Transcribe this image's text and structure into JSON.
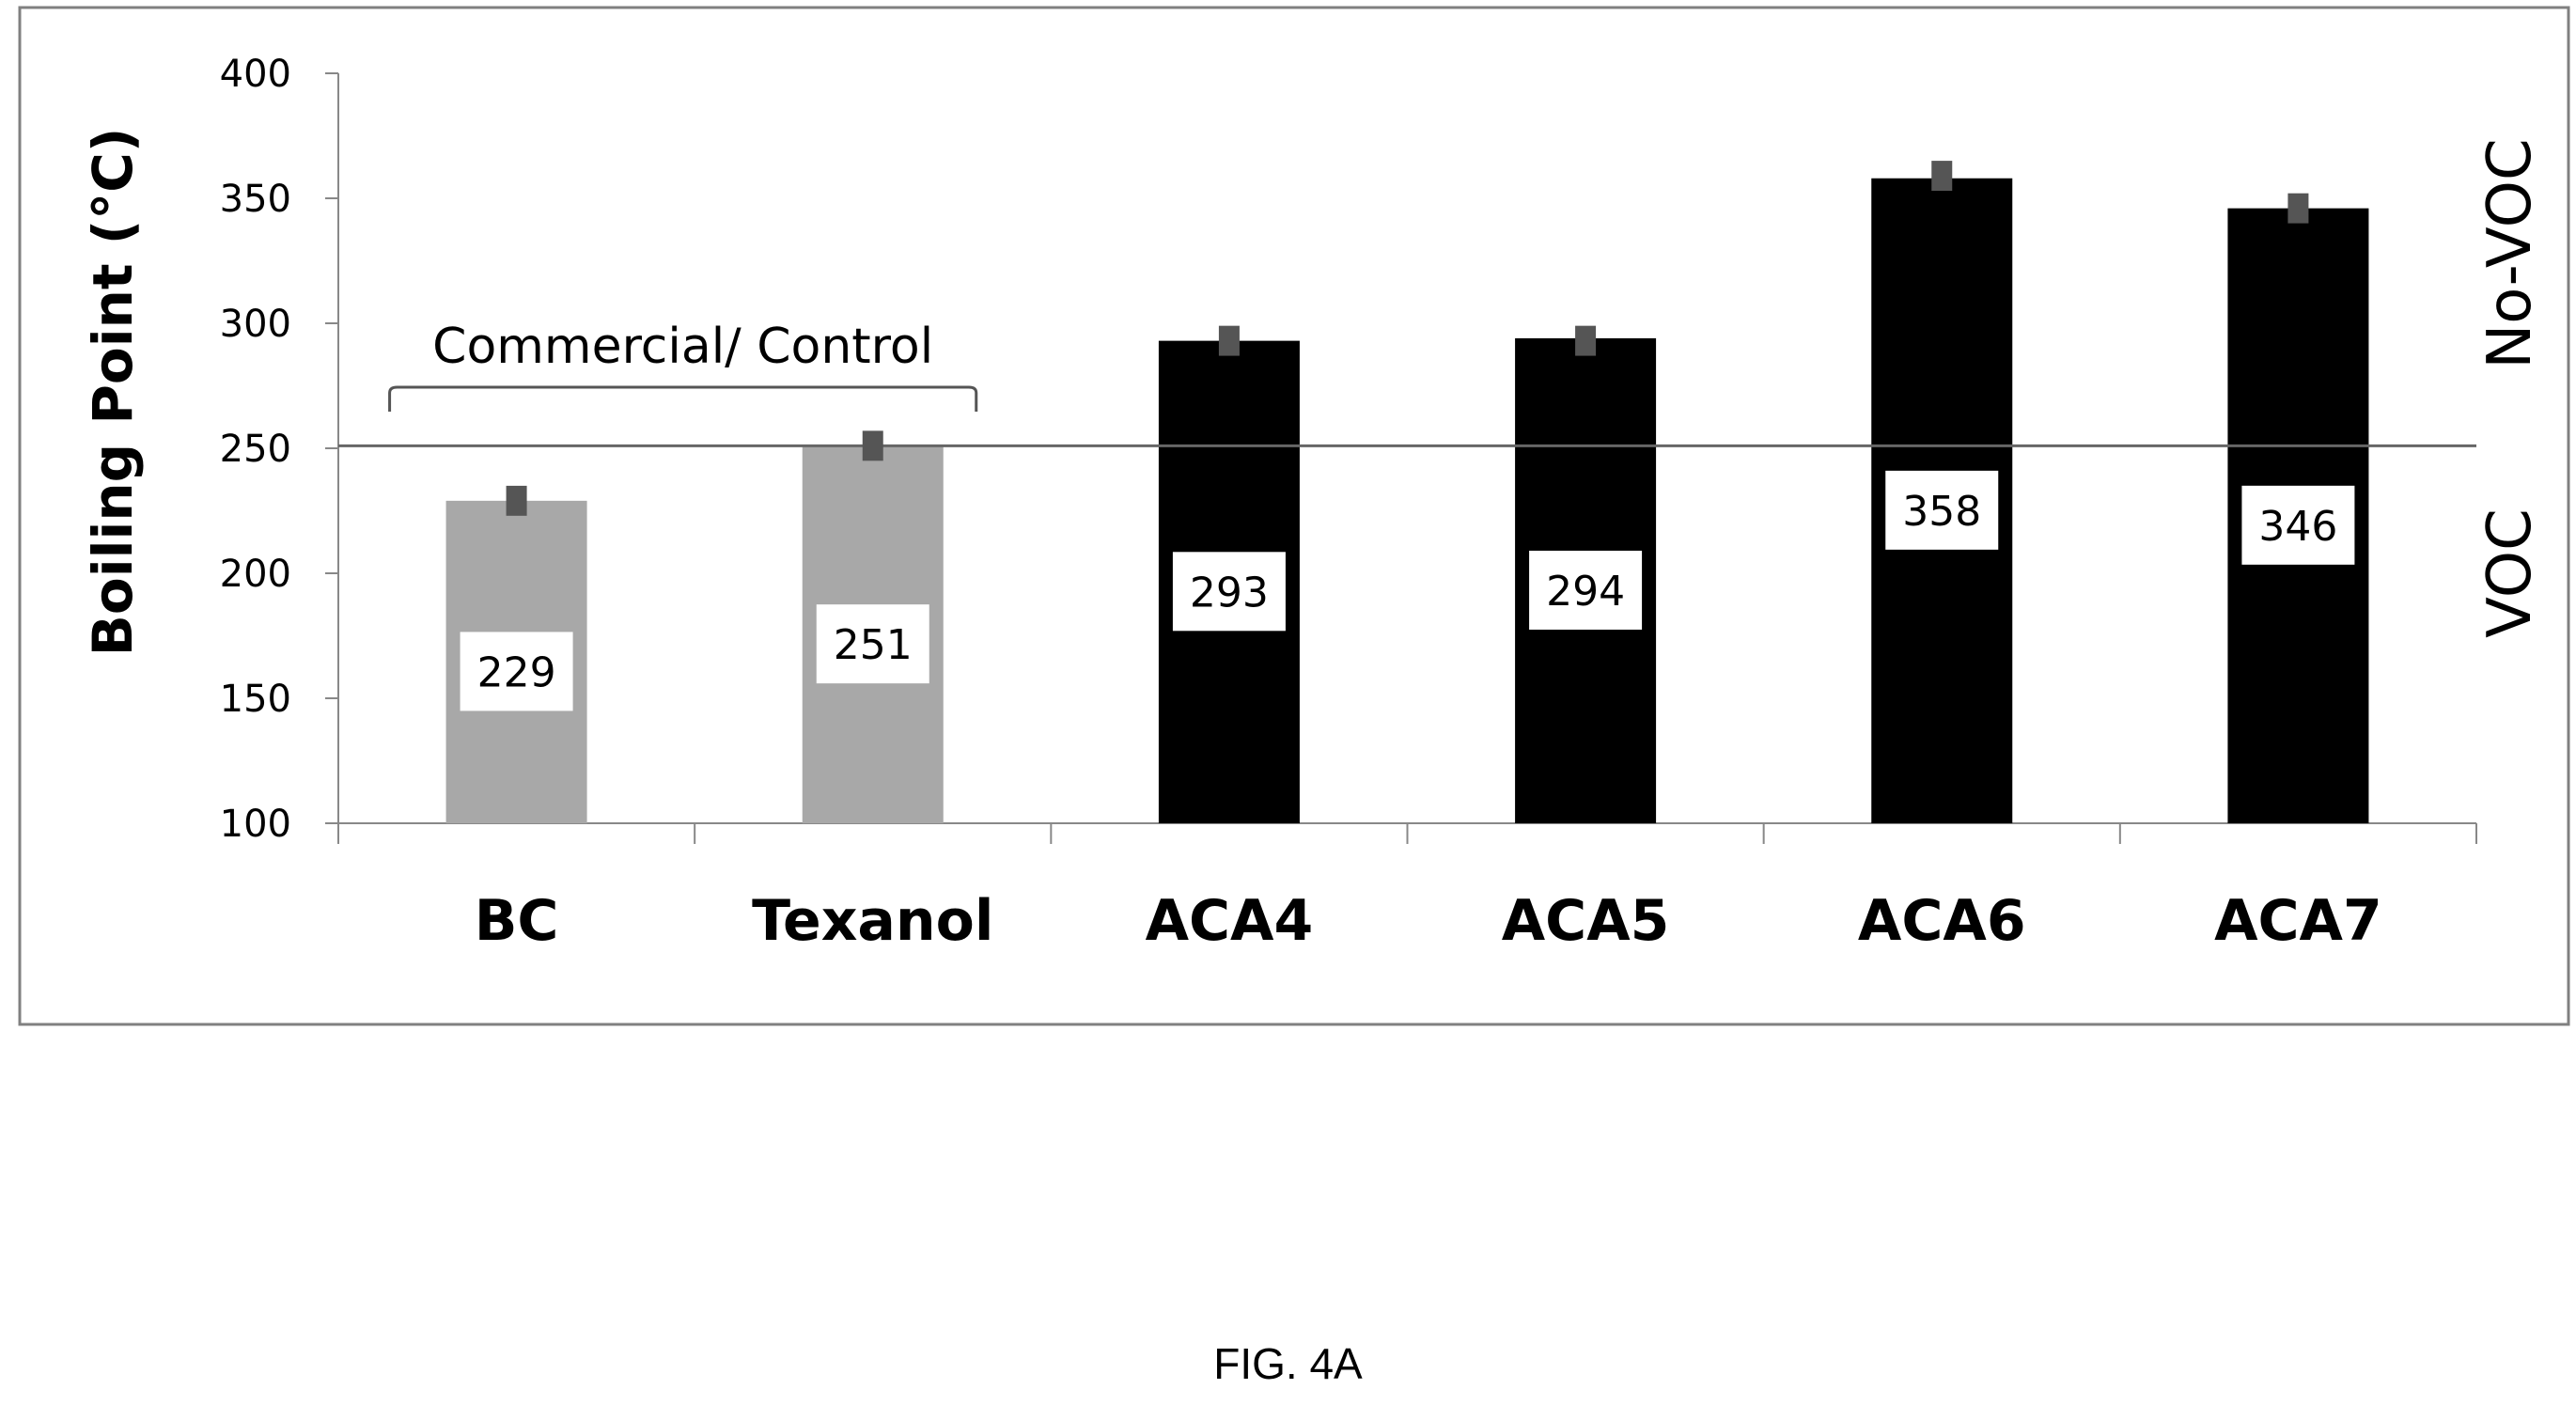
{
  "chart_data": {
    "type": "bar",
    "title": "",
    "xlabel": "",
    "ylabel": "Boiling Point (°C)",
    "ylim": [
      100,
      400
    ],
    "yticks": [
      100,
      150,
      200,
      250,
      300,
      350,
      400
    ],
    "categories": [
      "BC",
      "Texanol",
      "ACA4",
      "ACA5",
      "ACA6",
      "ACA7"
    ],
    "values": [
      229,
      251,
      293,
      294,
      358,
      346
    ],
    "data_labels": [
      "229",
      "251",
      "293",
      "294",
      "358",
      "346"
    ],
    "error_bar_centers": [
      229,
      251,
      293,
      293,
      359,
      346
    ],
    "error_bar_halfwidth": 6,
    "bar_colors": [
      "#a8a8a8",
      "#a8a8a8",
      "#000000",
      "#000000",
      "#000000",
      "#000000"
    ],
    "threshold": {
      "value": 251,
      "label_above": "No-VOC",
      "label_below": "VOC"
    },
    "group_bracket": {
      "label": "Commercial/ Control",
      "categories": [
        "BC",
        "Texanol"
      ]
    },
    "grid": false,
    "legend": "none"
  },
  "caption": "FIG. 4A",
  "colors": {
    "error_bar": "#555555",
    "axis": "#888888",
    "frame": "#808080",
    "threshold_line": "#666666"
  }
}
